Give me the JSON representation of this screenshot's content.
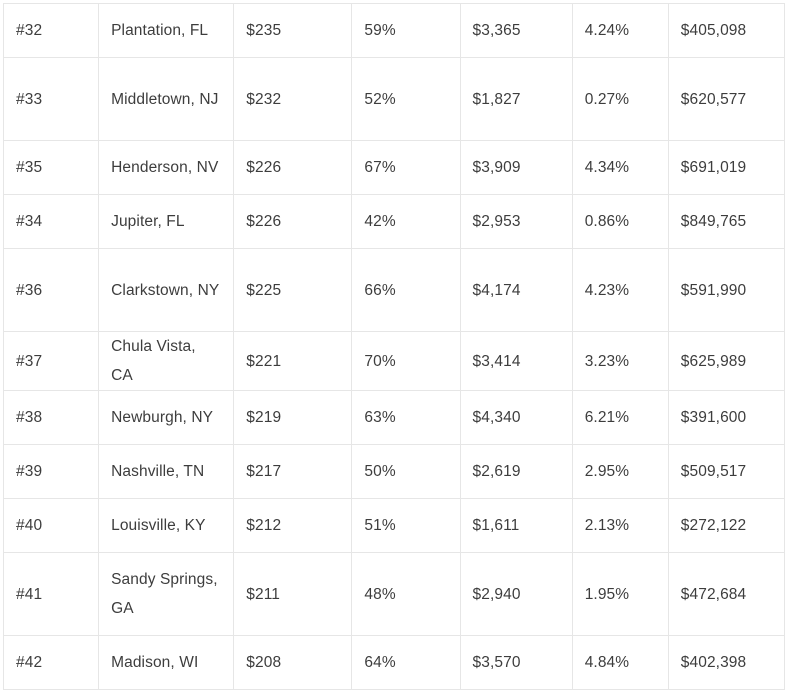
{
  "rows": [
    {
      "rank": "#32",
      "city": "Plantation, FL",
      "price": "$235",
      "pct": "59%",
      "income": "$3,365",
      "rate": "4.24%",
      "home": "$405,098"
    },
    {
      "rank": "#33",
      "city": "Middletown, NJ",
      "price": "$232",
      "pct": "52%",
      "income": "$1,827",
      "rate": "0.27%",
      "home": "$620,577"
    },
    {
      "rank": "#35",
      "city": "Henderson, NV",
      "price": "$226",
      "pct": "67%",
      "income": "$3,909",
      "rate": "4.34%",
      "home": "$691,019"
    },
    {
      "rank": "#34",
      "city": "Jupiter, FL",
      "price": "$226",
      "pct": "42%",
      "income": "$2,953",
      "rate": "0.86%",
      "home": "$849,765"
    },
    {
      "rank": "#36",
      "city": "Clarkstown, NY",
      "price": "$225",
      "pct": "66%",
      "income": "$4,174",
      "rate": "4.23%",
      "home": "$591,990"
    },
    {
      "rank": "#37",
      "city": "Chula Vista, CA",
      "price": "$221",
      "pct": "70%",
      "income": "$3,414",
      "rate": "3.23%",
      "home": "$625,989"
    },
    {
      "rank": "#38",
      "city": "Newburgh, NY",
      "price": "$219",
      "pct": "63%",
      "income": "$4,340",
      "rate": "6.21%",
      "home": "$391,600"
    },
    {
      "rank": "#39",
      "city": "Nashville, TN",
      "price": "$217",
      "pct": "50%",
      "income": "$2,619",
      "rate": "2.95%",
      "home": "$509,517"
    },
    {
      "rank": "#40",
      "city": "Louisville, KY",
      "price": "$212",
      "pct": "51%",
      "income": "$1,611",
      "rate": "2.13%",
      "home": "$272,122"
    },
    {
      "rank": "#41",
      "city": "Sandy Springs, GA",
      "price": "$211",
      "pct": "48%",
      "income": "$2,940",
      "rate": "1.95%",
      "home": "$472,684"
    },
    {
      "rank": "#42",
      "city": "Madison, WI",
      "price": "$208",
      "pct": "64%",
      "income": "$3,570",
      "rate": "4.84%",
      "home": "$402,398"
    }
  ]
}
